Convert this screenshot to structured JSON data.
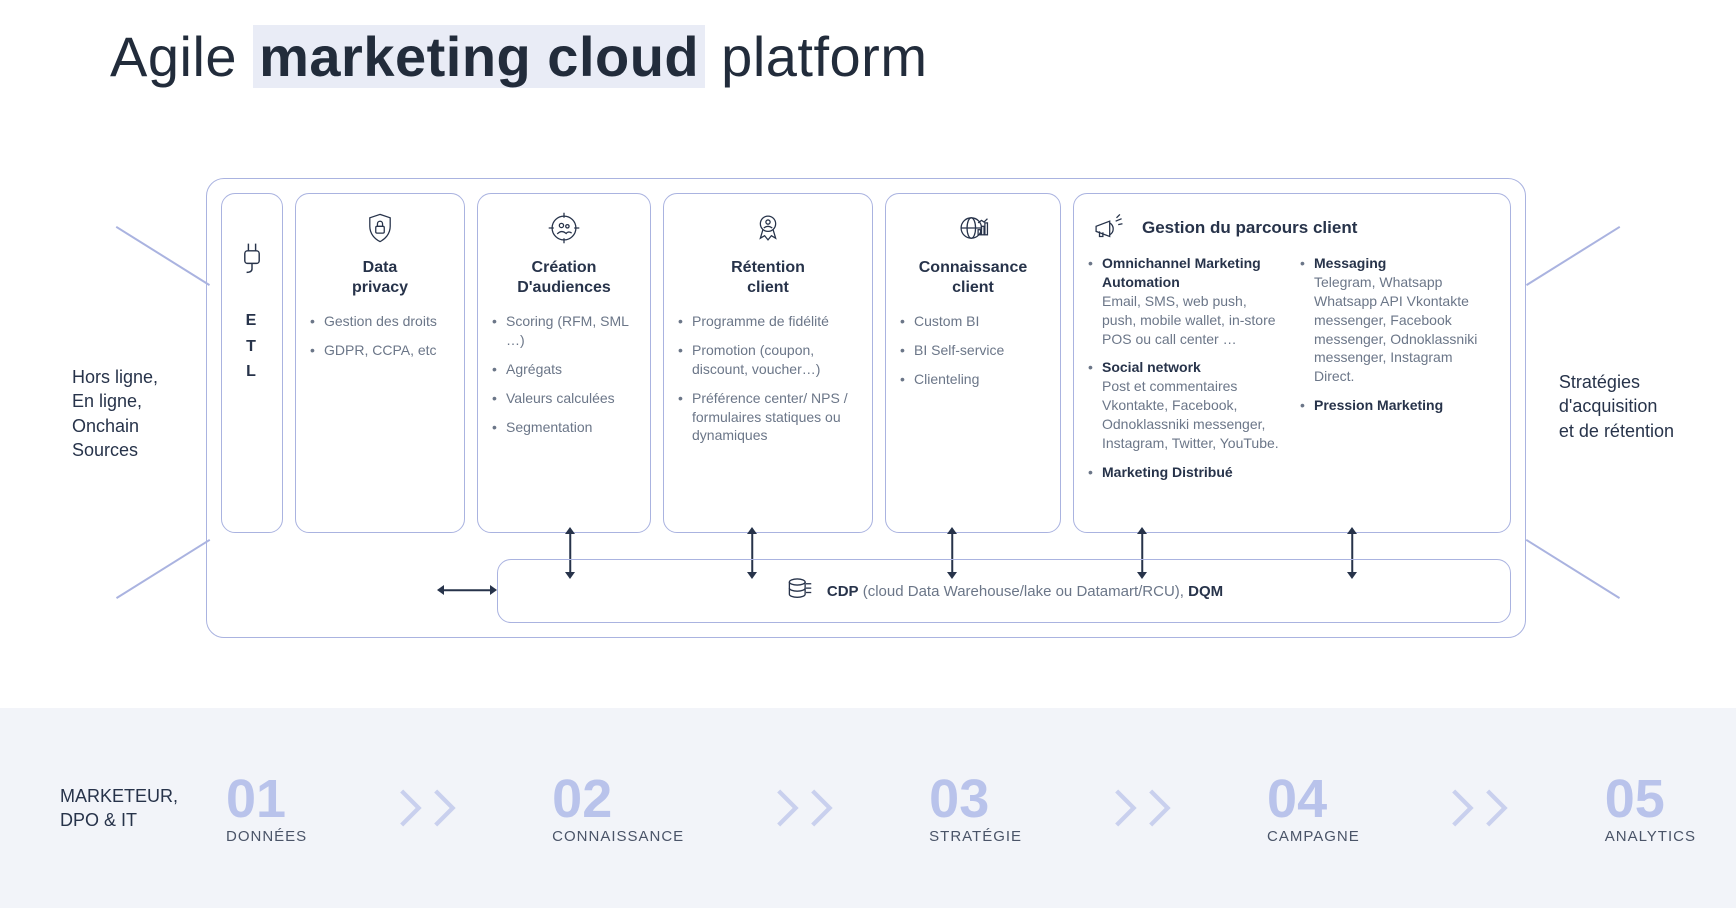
{
  "title": {
    "pre": "Agile ",
    "highlight": "marketing cloud",
    "post": " platform"
  },
  "side_left": "Hors ligne,\nEn ligne,\nOnchain\nSources",
  "side_right": "Stratégies\nd'acquisition\net de rétention",
  "colors": {
    "border": "#aab3e0",
    "text": "#27334a",
    "muted": "#6b7688",
    "step_num": "#b9c3eb",
    "band_bg": "#f2f4f9",
    "highlight_bg": "#e9ecf6"
  },
  "etl": {
    "letters": "E\nT\nL"
  },
  "cards": [
    {
      "title": "Data\nprivacy",
      "icon": "lock-shield-icon",
      "items": [
        "Gestion des droits",
        "GDPR, CCPA, etc"
      ]
    },
    {
      "title": "Création\nD'audiences",
      "icon": "target-people-icon",
      "items": [
        "Scoring (RFM, SML …)",
        "Agrégats",
        "Valeurs calculées",
        "Segmentation"
      ]
    },
    {
      "title": "Rétention\nclient",
      "icon": "badge-person-icon",
      "items": [
        "Programme de fidélité",
        "Promotion (coupon, discount, voucher…)",
        "Préférence center/ NPS / formulaires statiques ou dynamiques"
      ]
    },
    {
      "title": "Connaissance\nclient",
      "icon": "globe-chart-icon",
      "items": [
        "Custom BI",
        "BI Self-service",
        "Clienteling"
      ]
    }
  ],
  "journey": {
    "title": "Gestion du parcours client",
    "icon": "megaphone-icon",
    "left": [
      {
        "head": "Omnichannel Marketing Automation",
        "sub": "Email, SMS, web push, push, mobile wallet, in-store POS ou call center …"
      },
      {
        "head": "Social network",
        "sub": "Post et commentaires Vkontakte, Facebook, Odnoklassniki messenger, Instagram, Twitter, YouTube."
      },
      {
        "head": "Marketing Distribué",
        "sub": ""
      }
    ],
    "right": [
      {
        "head": "Messaging",
        "sub": "Telegram, Whatsapp Whatsapp API Vkontakte messenger, Facebook messenger, Odnoklassniki messenger, Instagram Direct."
      },
      {
        "head": "Pression Marketing",
        "sub": ""
      }
    ]
  },
  "cdp": {
    "bold1": "CDP",
    "muted": " (cloud Data Warehouse/lake ou Datamart/RCU), ",
    "bold2": "DQM"
  },
  "band_label": "MARKETEUR,\nDPO & IT",
  "steps": [
    {
      "num": "01",
      "label": "DONNÉES"
    },
    {
      "num": "02",
      "label": "CONNAISSANCE"
    },
    {
      "num": "03",
      "label": "STRATÉGIE"
    },
    {
      "num": "04",
      "label": "CAMPAGNE"
    },
    {
      "num": "05",
      "label": "ANALYTICS"
    }
  ]
}
